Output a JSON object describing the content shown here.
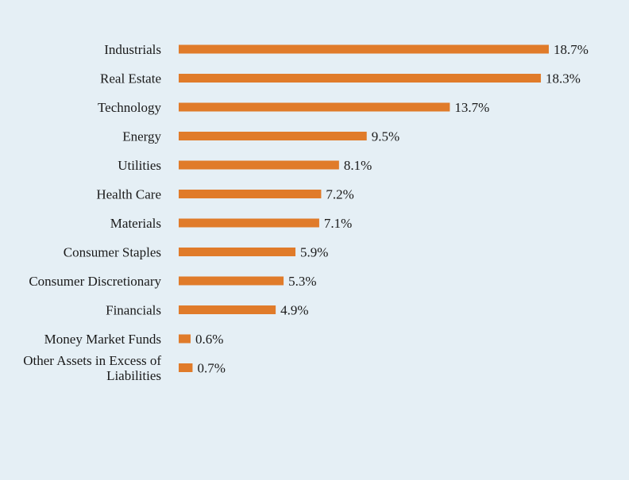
{
  "chart_data": {
    "type": "bar",
    "orientation": "horizontal",
    "categories": [
      "Industrials",
      "Real Estate",
      "Technology",
      "Energy",
      "Utilities",
      "Health Care",
      "Materials",
      "Consumer Staples",
      "Consumer Discretionary",
      "Financials",
      "Money Market Funds",
      "Other Assets in Excess of Liabilities"
    ],
    "values": [
      18.7,
      18.3,
      13.7,
      9.5,
      8.1,
      7.2,
      7.1,
      5.9,
      5.3,
      4.9,
      0.6,
      0.7
    ],
    "value_labels": [
      "18.7%",
      "18.3%",
      "13.7%",
      "9.5%",
      "8.1%",
      "7.2%",
      "7.1%",
      "5.9%",
      "5.3%",
      "4.9%",
      "0.6%",
      "0.7%"
    ],
    "category_label_lines": {
      "Other Assets in Excess of Liabilities": [
        "Other Assets in Excess of",
        "Liabilities"
      ]
    },
    "xlim": [
      0,
      18.7
    ],
    "grid": false,
    "legend": "none",
    "colors": {
      "bar": "#e07b2a",
      "background": "#e5eff5",
      "text": "#1a1a1a"
    }
  }
}
